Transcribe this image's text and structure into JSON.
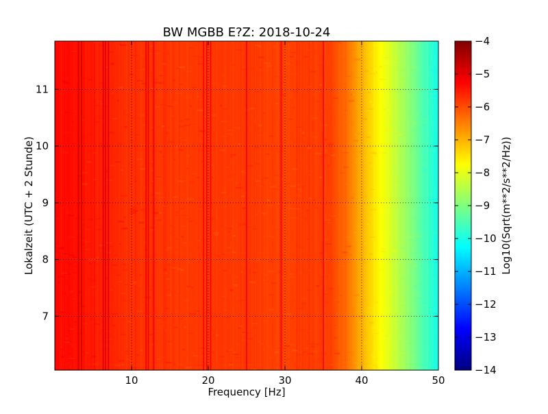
{
  "chart_data": {
    "type": "heatmap",
    "title": "BW MGBB E?Z: 2018-10-24",
    "xlabel": "Frequency [Hz]",
    "ylabel": "Lokalzeit (UTC + 2 Stunde)",
    "xlim": [
      0,
      50
    ],
    "ylim": [
      11.85,
      6.05
    ],
    "y_inverted": true,
    "grid": true,
    "x_ticks": [
      10,
      20,
      30,
      40,
      50
    ],
    "y_ticks": [
      7,
      8,
      9,
      10,
      11
    ],
    "colormap": "jet",
    "colorbar": {
      "label": "Log10(Sqrt(m**2/s**2/Hz))",
      "range": [
        -14,
        -4
      ],
      "ticks": [
        -4,
        -5,
        -6,
        -7,
        -8,
        -9,
        -10,
        -11,
        -12,
        -13,
        -14
      ]
    },
    "spectrum_profile": {
      "frequency_hz": [
        0,
        5,
        10,
        15,
        20,
        25,
        30,
        33,
        36,
        38,
        40,
        41,
        42,
        43,
        44,
        45,
        46,
        47,
        48,
        49,
        50
      ],
      "log10_amplitude": [
        -5.3,
        -5.5,
        -5.7,
        -5.8,
        -5.8,
        -5.8,
        -5.9,
        -5.8,
        -5.9,
        -6.3,
        -7.0,
        -7.3,
        -7.6,
        -7.9,
        -8.2,
        -8.5,
        -8.8,
        -9.1,
        -9.5,
        -9.8,
        -10.1
      ]
    },
    "spectral_lines_hz": [
      3.1,
      3.5,
      6.3,
      6.6,
      7.0,
      11.9,
      12.2,
      12.9,
      19.4,
      19.8,
      20.3,
      25.0,
      29.5,
      35.0
    ]
  }
}
